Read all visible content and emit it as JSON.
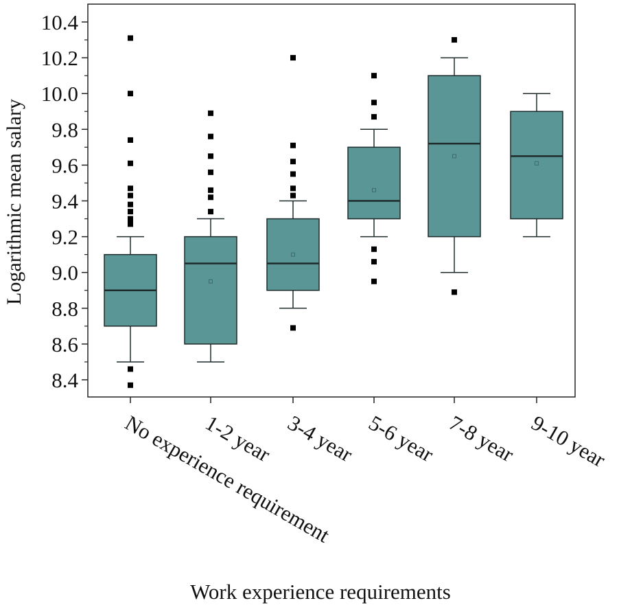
{
  "chart_data": {
    "type": "box",
    "xlabel": "Work experience requirements",
    "ylabel": "Logarithmic mean salary",
    "ylim": [
      8.35,
      10.45
    ],
    "yticks": [
      8.4,
      8.6,
      8.8,
      9.0,
      9.2,
      9.4,
      9.6,
      9.8,
      10.0,
      10.2,
      10.4
    ],
    "categories": [
      "No experience requirement",
      "1-2 year",
      "3-4 year",
      "5-6 year",
      "7-8 year",
      "9-10 year"
    ],
    "boxes": [
      {
        "category": "No experience requirement",
        "whisker_low": 8.5,
        "q1": 8.7,
        "median": 8.9,
        "q3": 9.1,
        "whisker_high": 9.2,
        "mean": null,
        "outliers": [
          8.37,
          8.46,
          9.27,
          9.3,
          9.34,
          9.38,
          9.43,
          9.47,
          9.61,
          9.74,
          10.0,
          10.31
        ]
      },
      {
        "category": "1-2 year",
        "whisker_low": 8.5,
        "q1": 8.6,
        "median": 9.05,
        "q3": 9.2,
        "whisker_high": 9.3,
        "mean": 8.95,
        "outliers": [
          9.34,
          9.42,
          9.46,
          9.56,
          9.65,
          9.76,
          9.89
        ]
      },
      {
        "category": "3-4 year",
        "whisker_low": 8.8,
        "q1": 8.9,
        "median": 9.05,
        "q3": 9.3,
        "whisker_high": 9.4,
        "mean": 9.1,
        "outliers": [
          8.69,
          9.43,
          9.47,
          9.55,
          9.62,
          9.71,
          10.2
        ]
      },
      {
        "category": "5-6 year",
        "whisker_low": 9.2,
        "q1": 9.3,
        "median": 9.4,
        "q3": 9.7,
        "whisker_high": 9.8,
        "mean": 9.46,
        "outliers": [
          8.95,
          9.06,
          9.13,
          9.87,
          9.95,
          10.1
        ]
      },
      {
        "category": "7-8 year",
        "whisker_low": 9.0,
        "q1": 9.2,
        "median": 9.72,
        "q3": 10.1,
        "whisker_high": 10.2,
        "mean": 9.65,
        "outliers": [
          8.89,
          10.3
        ]
      },
      {
        "category": "9-10 year",
        "whisker_low": 9.2,
        "q1": 9.3,
        "median": 9.65,
        "q3": 9.9,
        "whisker_high": 10.0,
        "mean": 9.61,
        "outliers": []
      }
    ],
    "colors": {
      "box_fill": "#5b9696",
      "box_stroke": "#1f2a2a",
      "outlier": "#000000",
      "axis": "#222222"
    },
    "grid": false,
    "legend": "none"
  }
}
